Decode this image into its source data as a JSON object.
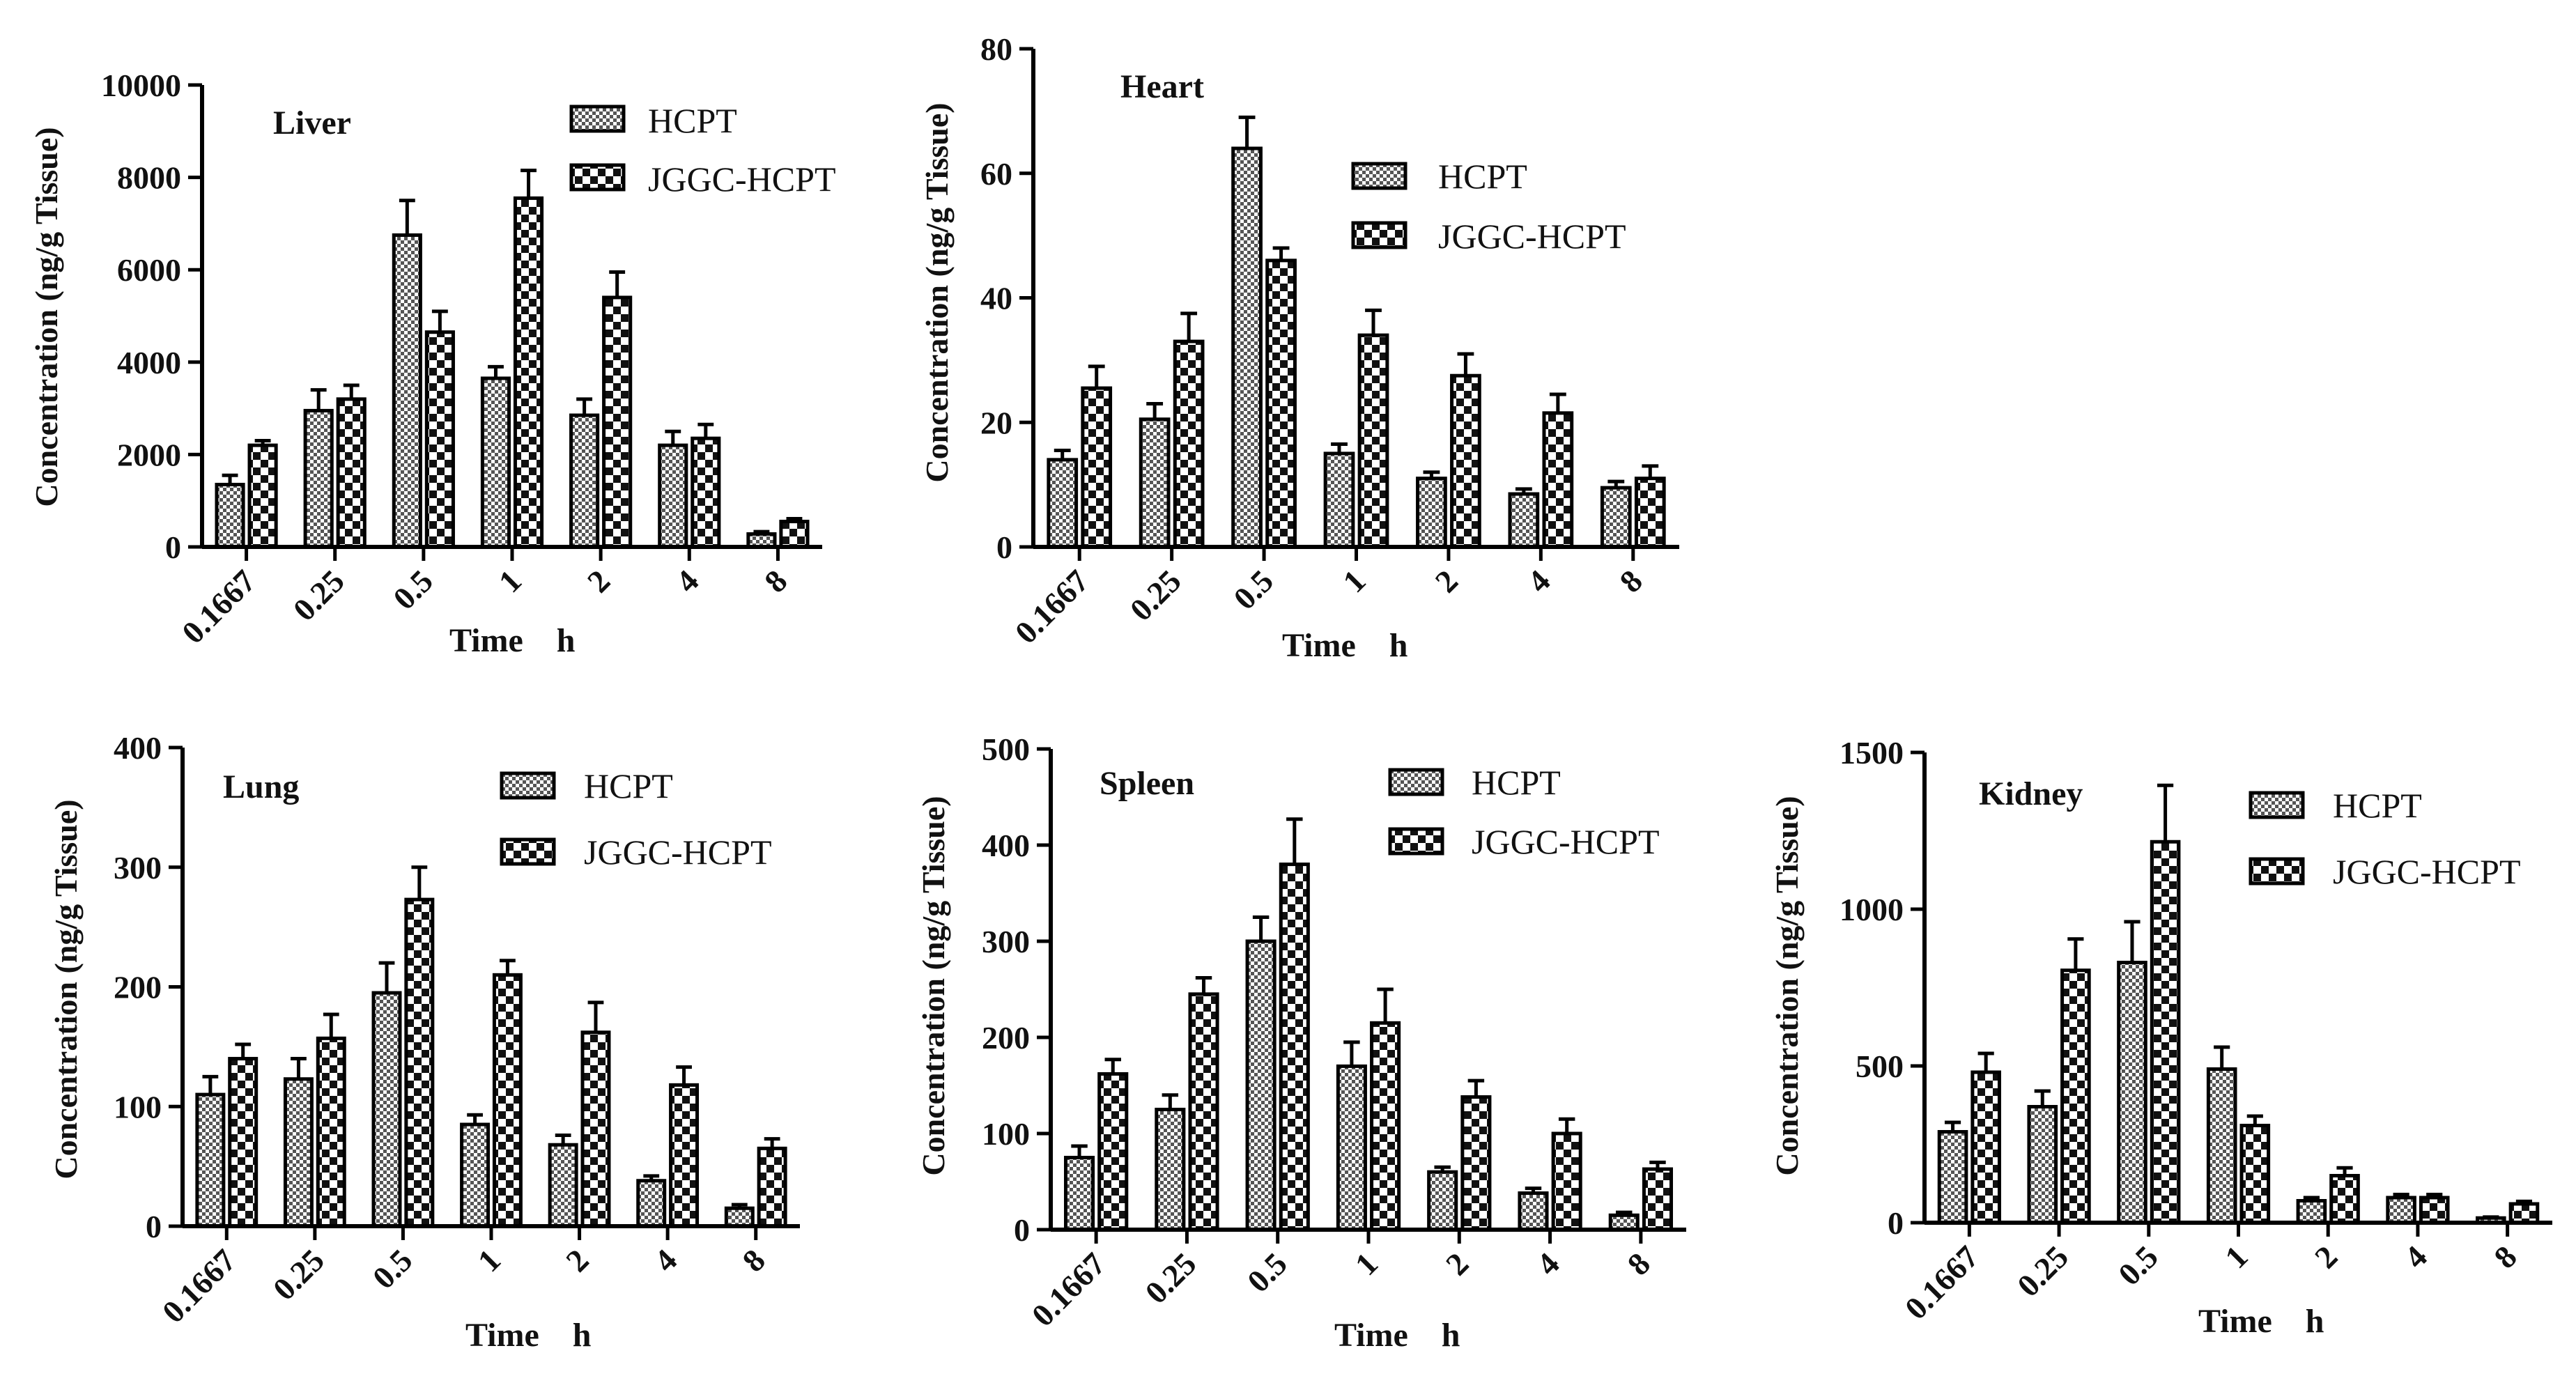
{
  "chart_data": [
    {
      "type": "bar",
      "title": "Liver",
      "xlabel": "Time    h",
      "ylabel": "Concentration (ng/g Tissue)",
      "categories": [
        "0.1667",
        "0.25",
        "0.5",
        "1",
        "2",
        "4",
        "8"
      ],
      "ylim": [
        0,
        10000
      ],
      "yticks": [
        "0",
        "2000",
        "4000",
        "6000",
        "8000",
        "10000"
      ],
      "legend_position": "top-right",
      "series": [
        {
          "name": "HCPT",
          "values": [
            1350,
            2950,
            6750,
            3650,
            2850,
            2200,
            280
          ],
          "errors": [
            200,
            450,
            750,
            250,
            350,
            300,
            50
          ]
        },
        {
          "name": "JGGC-HCPT",
          "values": [
            2200,
            3200,
            4650,
            7550,
            5400,
            2350,
            550
          ],
          "errors": [
            100,
            300,
            450,
            600,
            550,
            300,
            60
          ]
        }
      ]
    },
    {
      "type": "bar",
      "title": "Heart",
      "xlabel": "Time    h",
      "ylabel": "Concentration  (ng/g Tissue)",
      "categories": [
        "0.1667",
        "0.25",
        "0.5",
        "1",
        "2",
        "4",
        "8"
      ],
      "ylim": [
        0,
        80
      ],
      "yticks": [
        "0",
        "20",
        "40",
        "60",
        "80"
      ],
      "legend_position": "top-right",
      "series": [
        {
          "name": "HCPT",
          "values": [
            14,
            20.5,
            64,
            15,
            11,
            8.5,
            9.5
          ],
          "errors": [
            1.5,
            2.5,
            5,
            1.5,
            1,
            0.8,
            1
          ]
        },
        {
          "name": "JGGC-HCPT",
          "values": [
            25.5,
            33,
            46,
            34,
            27.5,
            21.5,
            11
          ],
          "errors": [
            3.5,
            4.5,
            2,
            4,
            3.5,
            3,
            2
          ]
        }
      ]
    },
    {
      "type": "bar",
      "title": "Lung",
      "xlabel": "Time    h",
      "ylabel": "Concentration (ng/g Tissue)",
      "categories": [
        "0.1667",
        "0.25",
        "0.5",
        "1",
        "2",
        "4",
        "8"
      ],
      "ylim": [
        0,
        400
      ],
      "yticks": [
        "0",
        "100",
        "200",
        "300",
        "400"
      ],
      "legend_position": "top-right",
      "series": [
        {
          "name": "HCPT",
          "values": [
            110,
            123,
            195,
            85,
            68,
            38,
            15
          ],
          "errors": [
            15,
            17,
            25,
            8,
            8,
            4,
            3
          ]
        },
        {
          "name": "JGGC-HCPT",
          "values": [
            140,
            157,
            273,
            210,
            162,
            118,
            65
          ],
          "errors": [
            12,
            20,
            27,
            12,
            25,
            15,
            8
          ]
        }
      ]
    },
    {
      "type": "bar",
      "title": "Spleen",
      "xlabel": "Time    h",
      "ylabel": "Concentration (ng/g Tissue)",
      "categories": [
        "0.1667",
        "0.25",
        "0.5",
        "1",
        "2",
        "4",
        "8"
      ],
      "ylim": [
        0,
        500
      ],
      "yticks": [
        "0",
        "100",
        "200",
        "300",
        "400",
        "500"
      ],
      "legend_position": "top-right",
      "series": [
        {
          "name": "HCPT",
          "values": [
            75,
            125,
            300,
            170,
            60,
            38,
            15
          ],
          "errors": [
            12,
            15,
            25,
            25,
            5,
            5,
            3
          ]
        },
        {
          "name": "JGGC-HCPT",
          "values": [
            162,
            245,
            380,
            215,
            138,
            100,
            63
          ],
          "errors": [
            15,
            17,
            47,
            35,
            17,
            15,
            7
          ]
        }
      ]
    },
    {
      "type": "bar",
      "title": "Kidney",
      "xlabel": "Time    h",
      "ylabel": "Concentration (ng/g Tissue)",
      "categories": [
        "0.1667",
        "0.25",
        "0.5",
        "1",
        "2",
        "4",
        "8"
      ],
      "ylim": [
        0,
        1500
      ],
      "yticks": [
        "0",
        "500",
        "1000",
        "1500"
      ],
      "legend_position": "top-right",
      "series": [
        {
          "name": "HCPT",
          "values": [
            290,
            370,
            830,
            490,
            70,
            80,
            15
          ],
          "errors": [
            30,
            50,
            130,
            70,
            10,
            10,
            3
          ]
        },
        {
          "name": "JGGC-HCPT",
          "values": [
            480,
            805,
            1215,
            310,
            150,
            80,
            60
          ],
          "errors": [
            60,
            100,
            180,
            30,
            25,
            10,
            8
          ]
        }
      ]
    }
  ]
}
